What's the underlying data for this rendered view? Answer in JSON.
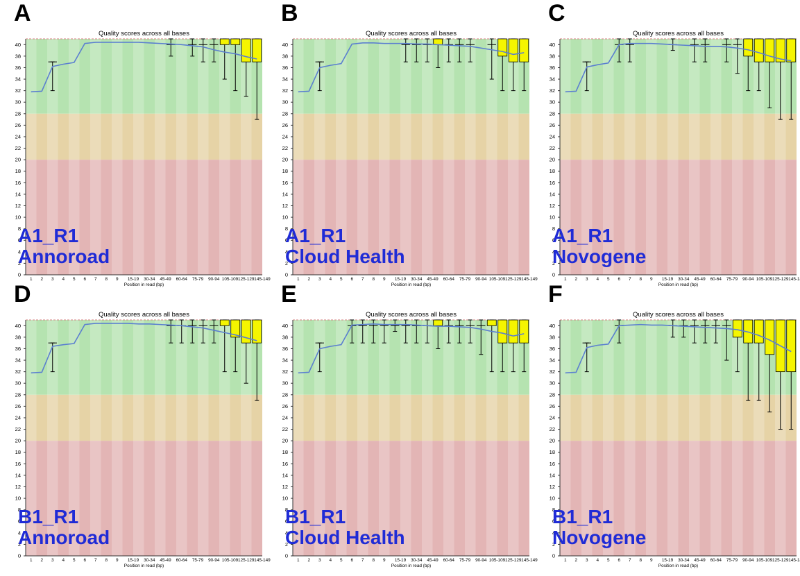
{
  "figure": {
    "x_ticks": [
      "1",
      "2",
      "3",
      "4",
      "5",
      "6",
      "7",
      "8",
      "9",
      "15-19",
      "30-34",
      "45-49",
      "60-64",
      "75-79",
      "90-94",
      "105-109",
      "125-129",
      "145-149"
    ],
    "y_ticks": [
      0,
      2,
      4,
      6,
      8,
      10,
      12,
      14,
      16,
      18,
      20,
      22,
      24,
      26,
      28,
      30,
      32,
      34,
      36,
      38,
      40
    ],
    "colors": {
      "zone_good": "#b5e3b0",
      "zone_ok": "#e6d3a6",
      "zone_poor": "#e3b5b5",
      "box": "#f5f500",
      "mean_line": "#5b7fd0",
      "label": "#1f2bd6"
    }
  },
  "panels": [
    {
      "letter": "A",
      "sample": "A1_R1",
      "provider": "Annoroad",
      "chart_data": {
        "type": "box",
        "title": "Quality scores across all bases",
        "xlabel": "Position in read (bp)",
        "ylim": [
          0,
          41
        ],
        "zones": [
          {
            "name": "good",
            "from": 28,
            "to": 41
          },
          {
            "name": "reasonable",
            "from": 20,
            "to": 28
          },
          {
            "name": "poor",
            "from": 0,
            "to": 20
          }
        ],
        "mean": [
          31.8,
          31.9,
          36.2,
          36.6,
          36.9,
          40.2,
          40.4,
          40.4,
          40.4,
          40.4,
          40.4,
          40.3,
          40.2,
          40.1,
          40.0,
          39.8,
          39.6,
          39.1,
          38.7,
          38.4,
          37.9,
          37.5
        ],
        "boxes": [
          {
            "pos": 3,
            "q1": 37,
            "q3": 37,
            "lw": 32,
            "uw": 37
          },
          {
            "pos": 14,
            "q1": 40,
            "q3": 40,
            "lw": 38,
            "uw": 41
          },
          {
            "pos": 16,
            "q1": 40,
            "q3": 40,
            "lw": 38,
            "uw": 41
          },
          {
            "pos": 17,
            "q1": 40,
            "q3": 40,
            "lw": 37,
            "uw": 41
          },
          {
            "pos": 18,
            "q1": 40,
            "q3": 40,
            "lw": 37,
            "uw": 41
          },
          {
            "pos": 19,
            "q1": 40,
            "q3": 41,
            "lw": 34,
            "uw": 41
          },
          {
            "pos": 20,
            "q1": 40,
            "q3": 41,
            "lw": 32,
            "uw": 41
          },
          {
            "pos": 21,
            "q1": 37,
            "q3": 41,
            "lw": 31,
            "uw": 41
          },
          {
            "pos": 22,
            "q1": 37,
            "q3": 41,
            "lw": 27,
            "uw": 41
          }
        ]
      }
    },
    {
      "letter": "B",
      "sample": "A1_R1",
      "provider": "Cloud Health",
      "chart_data": {
        "type": "box",
        "title": "Quality scores across all bases",
        "xlabel": "Position in read (bp)",
        "ylim": [
          0,
          41
        ],
        "zones": [
          {
            "name": "good",
            "from": 28,
            "to": 41
          },
          {
            "name": "reasonable",
            "from": 20,
            "to": 28
          },
          {
            "name": "poor",
            "from": 0,
            "to": 20
          }
        ],
        "mean": [
          31.8,
          31.9,
          36.0,
          36.4,
          36.7,
          40.1,
          40.3,
          40.3,
          40.2,
          40.2,
          40.2,
          40.1,
          40.1,
          40.0,
          39.9,
          39.8,
          39.7,
          39.4,
          39.1,
          38.8,
          38.3,
          38.6
        ],
        "boxes": [
          {
            "pos": 3,
            "q1": 37,
            "q3": 37,
            "lw": 32,
            "uw": 37
          },
          {
            "pos": 11,
            "q1": 40,
            "q3": 40,
            "lw": 37,
            "uw": 41
          },
          {
            "pos": 12,
            "q1": 40,
            "q3": 40,
            "lw": 37,
            "uw": 41
          },
          {
            "pos": 13,
            "q1": 40,
            "q3": 40,
            "lw": 37,
            "uw": 41
          },
          {
            "pos": 14,
            "q1": 40,
            "q3": 41,
            "lw": 36,
            "uw": 41
          },
          {
            "pos": 15,
            "q1": 40,
            "q3": 40,
            "lw": 37,
            "uw": 41
          },
          {
            "pos": 16,
            "q1": 40,
            "q3": 40,
            "lw": 37,
            "uw": 41
          },
          {
            "pos": 17,
            "q1": 40,
            "q3": 40,
            "lw": 37,
            "uw": 41
          },
          {
            "pos": 19,
            "q1": 40,
            "q3": 40,
            "lw": 34,
            "uw": 41
          },
          {
            "pos": 20,
            "q1": 38,
            "q3": 41,
            "lw": 32,
            "uw": 41
          },
          {
            "pos": 21,
            "q1": 37,
            "q3": 41,
            "lw": 32,
            "uw": 41
          },
          {
            "pos": 22,
            "q1": 37,
            "q3": 41,
            "lw": 32,
            "uw": 41
          }
        ]
      }
    },
    {
      "letter": "C",
      "sample": "A1_R1",
      "provider": "Novogene",
      "chart_data": {
        "type": "box",
        "title": "Quality scores across all bases",
        "xlabel": "Position in read (bp)",
        "ylim": [
          0,
          41
        ],
        "zones": [
          {
            "name": "good",
            "from": 28,
            "to": 41
          },
          {
            "name": "reasonable",
            "from": 20,
            "to": 28
          },
          {
            "name": "poor",
            "from": 0,
            "to": 20
          }
        ],
        "mean": [
          31.8,
          31.9,
          36.1,
          36.5,
          36.8,
          40.0,
          40.2,
          40.2,
          40.2,
          40.1,
          40.0,
          39.9,
          39.8,
          39.7,
          39.7,
          39.6,
          39.4,
          39.1,
          38.6,
          38.0,
          37.5,
          37.2
        ],
        "boxes": [
          {
            "pos": 3,
            "q1": 37,
            "q3": 37,
            "lw": 32,
            "uw": 37
          },
          {
            "pos": 6,
            "q1": 40,
            "q3": 40,
            "lw": 37,
            "uw": 41
          },
          {
            "pos": 7,
            "q1": 40,
            "q3": 40,
            "lw": 37,
            "uw": 41
          },
          {
            "pos": 11,
            "q1": 40,
            "q3": 40,
            "lw": 39,
            "uw": 41
          },
          {
            "pos": 13,
            "q1": 40,
            "q3": 40,
            "lw": 37,
            "uw": 41
          },
          {
            "pos": 14,
            "q1": 40,
            "q3": 40,
            "lw": 37,
            "uw": 41
          },
          {
            "pos": 16,
            "q1": 40,
            "q3": 40,
            "lw": 37,
            "uw": 41
          },
          {
            "pos": 17,
            "q1": 40,
            "q3": 40,
            "lw": 35,
            "uw": 41
          },
          {
            "pos": 18,
            "q1": 38,
            "q3": 41,
            "lw": 32,
            "uw": 41
          },
          {
            "pos": 19,
            "q1": 37,
            "q3": 41,
            "lw": 32,
            "uw": 41
          },
          {
            "pos": 20,
            "q1": 37,
            "q3": 41,
            "lw": 29,
            "uw": 41
          },
          {
            "pos": 21,
            "q1": 37,
            "q3": 41,
            "lw": 27,
            "uw": 41
          },
          {
            "pos": 22,
            "q1": 37,
            "q3": 41,
            "lw": 27,
            "uw": 41
          }
        ]
      }
    },
    {
      "letter": "D",
      "sample": "B1_R1",
      "provider": "Annoroad",
      "chart_data": {
        "type": "box",
        "title": "Quality scores across all bases",
        "xlabel": "Position in read (bp)",
        "ylim": [
          0,
          41
        ],
        "zones": [
          {
            "name": "good",
            "from": 28,
            "to": 41
          },
          {
            "name": "reasonable",
            "from": 20,
            "to": 28
          },
          {
            "name": "poor",
            "from": 0,
            "to": 20
          }
        ],
        "mean": [
          31.8,
          31.9,
          36.4,
          36.7,
          36.9,
          40.2,
          40.4,
          40.4,
          40.4,
          40.4,
          40.3,
          40.3,
          40.2,
          40.1,
          40.0,
          39.8,
          39.6,
          39.2,
          38.8,
          38.4,
          37.9,
          37.4
        ],
        "boxes": [
          {
            "pos": 3,
            "q1": 37,
            "q3": 37,
            "lw": 32,
            "uw": 37
          },
          {
            "pos": 14,
            "q1": 40,
            "q3": 40,
            "lw": 37,
            "uw": 41
          },
          {
            "pos": 15,
            "q1": 40,
            "q3": 40,
            "lw": 37,
            "uw": 41
          },
          {
            "pos": 16,
            "q1": 40,
            "q3": 40,
            "lw": 37,
            "uw": 41
          },
          {
            "pos": 17,
            "q1": 40,
            "q3": 40,
            "lw": 37,
            "uw": 41
          },
          {
            "pos": 18,
            "q1": 40,
            "q3": 40,
            "lw": 37,
            "uw": 41
          },
          {
            "pos": 19,
            "q1": 40,
            "q3": 41,
            "lw": 32,
            "uw": 41
          },
          {
            "pos": 20,
            "q1": 38,
            "q3": 41,
            "lw": 32,
            "uw": 41
          },
          {
            "pos": 21,
            "q1": 37,
            "q3": 41,
            "lw": 30,
            "uw": 41
          },
          {
            "pos": 22,
            "q1": 37,
            "q3": 41,
            "lw": 27,
            "uw": 41
          }
        ]
      }
    },
    {
      "letter": "E",
      "sample": "B1_R1",
      "provider": "Cloud Health",
      "chart_data": {
        "type": "box",
        "title": "Quality scores across all bases",
        "xlabel": "Position in read (bp)",
        "ylim": [
          0,
          41
        ],
        "zones": [
          {
            "name": "good",
            "from": 28,
            "to": 41
          },
          {
            "name": "reasonable",
            "from": 20,
            "to": 28
          },
          {
            "name": "poor",
            "from": 0,
            "to": 20
          }
        ],
        "mean": [
          31.8,
          31.9,
          36.0,
          36.4,
          36.7,
          40.1,
          40.2,
          40.3,
          40.2,
          40.2,
          40.2,
          40.1,
          40.0,
          39.9,
          39.9,
          39.8,
          39.7,
          39.4,
          39.0,
          38.7,
          38.2,
          38.6
        ],
        "boxes": [
          {
            "pos": 3,
            "q1": 37,
            "q3": 37,
            "lw": 32,
            "uw": 37
          },
          {
            "pos": 6,
            "q1": 40,
            "q3": 40,
            "lw": 37,
            "uw": 41
          },
          {
            "pos": 7,
            "q1": 40,
            "q3": 40,
            "lw": 37,
            "uw": 41
          },
          {
            "pos": 8,
            "q1": 40,
            "q3": 40,
            "lw": 37,
            "uw": 41
          },
          {
            "pos": 9,
            "q1": 40,
            "q3": 40,
            "lw": 37,
            "uw": 41
          },
          {
            "pos": 10,
            "q1": 40,
            "q3": 40,
            "lw": 39,
            "uw": 41
          },
          {
            "pos": 11,
            "q1": 40,
            "q3": 40,
            "lw": 37,
            "uw": 41
          },
          {
            "pos": 12,
            "q1": 40,
            "q3": 40,
            "lw": 37,
            "uw": 41
          },
          {
            "pos": 13,
            "q1": 40,
            "q3": 40,
            "lw": 37,
            "uw": 41
          },
          {
            "pos": 14,
            "q1": 40,
            "q3": 41,
            "lw": 36,
            "uw": 41
          },
          {
            "pos": 15,
            "q1": 40,
            "q3": 40,
            "lw": 37,
            "uw": 41
          },
          {
            "pos": 16,
            "q1": 40,
            "q3": 40,
            "lw": 37,
            "uw": 41
          },
          {
            "pos": 17,
            "q1": 40,
            "q3": 40,
            "lw": 37,
            "uw": 41
          },
          {
            "pos": 18,
            "q1": 40,
            "q3": 40,
            "lw": 35,
            "uw": 41
          },
          {
            "pos": 19,
            "q1": 40,
            "q3": 41,
            "lw": 32,
            "uw": 41
          },
          {
            "pos": 20,
            "q1": 37,
            "q3": 41,
            "lw": 32,
            "uw": 41
          },
          {
            "pos": 21,
            "q1": 37,
            "q3": 41,
            "lw": 32,
            "uw": 41
          },
          {
            "pos": 22,
            "q1": 37,
            "q3": 41,
            "lw": 32,
            "uw": 41
          }
        ]
      }
    },
    {
      "letter": "F",
      "sample": "B1_R1",
      "provider": "Novogene",
      "chart_data": {
        "type": "box",
        "title": "Quality scores across all bases",
        "xlabel": "Position in read (bp)",
        "ylim": [
          0,
          41
        ],
        "zones": [
          {
            "name": "good",
            "from": 28,
            "to": 41
          },
          {
            "name": "reasonable",
            "from": 20,
            "to": 28
          },
          {
            "name": "poor",
            "from": 0,
            "to": 20
          }
        ],
        "mean": [
          31.8,
          31.9,
          36.2,
          36.6,
          36.8,
          40.0,
          40.1,
          40.2,
          40.1,
          40.1,
          40.0,
          39.9,
          39.8,
          39.7,
          39.6,
          39.5,
          39.3,
          38.9,
          38.3,
          37.5,
          36.5,
          35.5
        ],
        "boxes": [
          {
            "pos": 3,
            "q1": 37,
            "q3": 37,
            "lw": 32,
            "uw": 37
          },
          {
            "pos": 6,
            "q1": 40,
            "q3": 40,
            "lw": 37,
            "uw": 41
          },
          {
            "pos": 11,
            "q1": 40,
            "q3": 40,
            "lw": 38,
            "uw": 41
          },
          {
            "pos": 12,
            "q1": 40,
            "q3": 40,
            "lw": 38,
            "uw": 41
          },
          {
            "pos": 13,
            "q1": 40,
            "q3": 40,
            "lw": 37,
            "uw": 41
          },
          {
            "pos": 14,
            "q1": 40,
            "q3": 40,
            "lw": 37,
            "uw": 41
          },
          {
            "pos": 15,
            "q1": 40,
            "q3": 40,
            "lw": 37,
            "uw": 41
          },
          {
            "pos": 16,
            "q1": 40,
            "q3": 40,
            "lw": 34,
            "uw": 41
          },
          {
            "pos": 17,
            "q1": 38,
            "q3": 41,
            "lw": 32,
            "uw": 41
          },
          {
            "pos": 18,
            "q1": 37,
            "q3": 41,
            "lw": 27,
            "uw": 41
          },
          {
            "pos": 19,
            "q1": 37,
            "q3": 41,
            "lw": 27,
            "uw": 41
          },
          {
            "pos": 20,
            "q1": 35,
            "q3": 41,
            "lw": 25,
            "uw": 41
          },
          {
            "pos": 21,
            "q1": 32,
            "q3": 41,
            "lw": 22,
            "uw": 41
          },
          {
            "pos": 22,
            "q1": 32,
            "q3": 41,
            "lw": 22,
            "uw": 41
          }
        ]
      }
    }
  ]
}
